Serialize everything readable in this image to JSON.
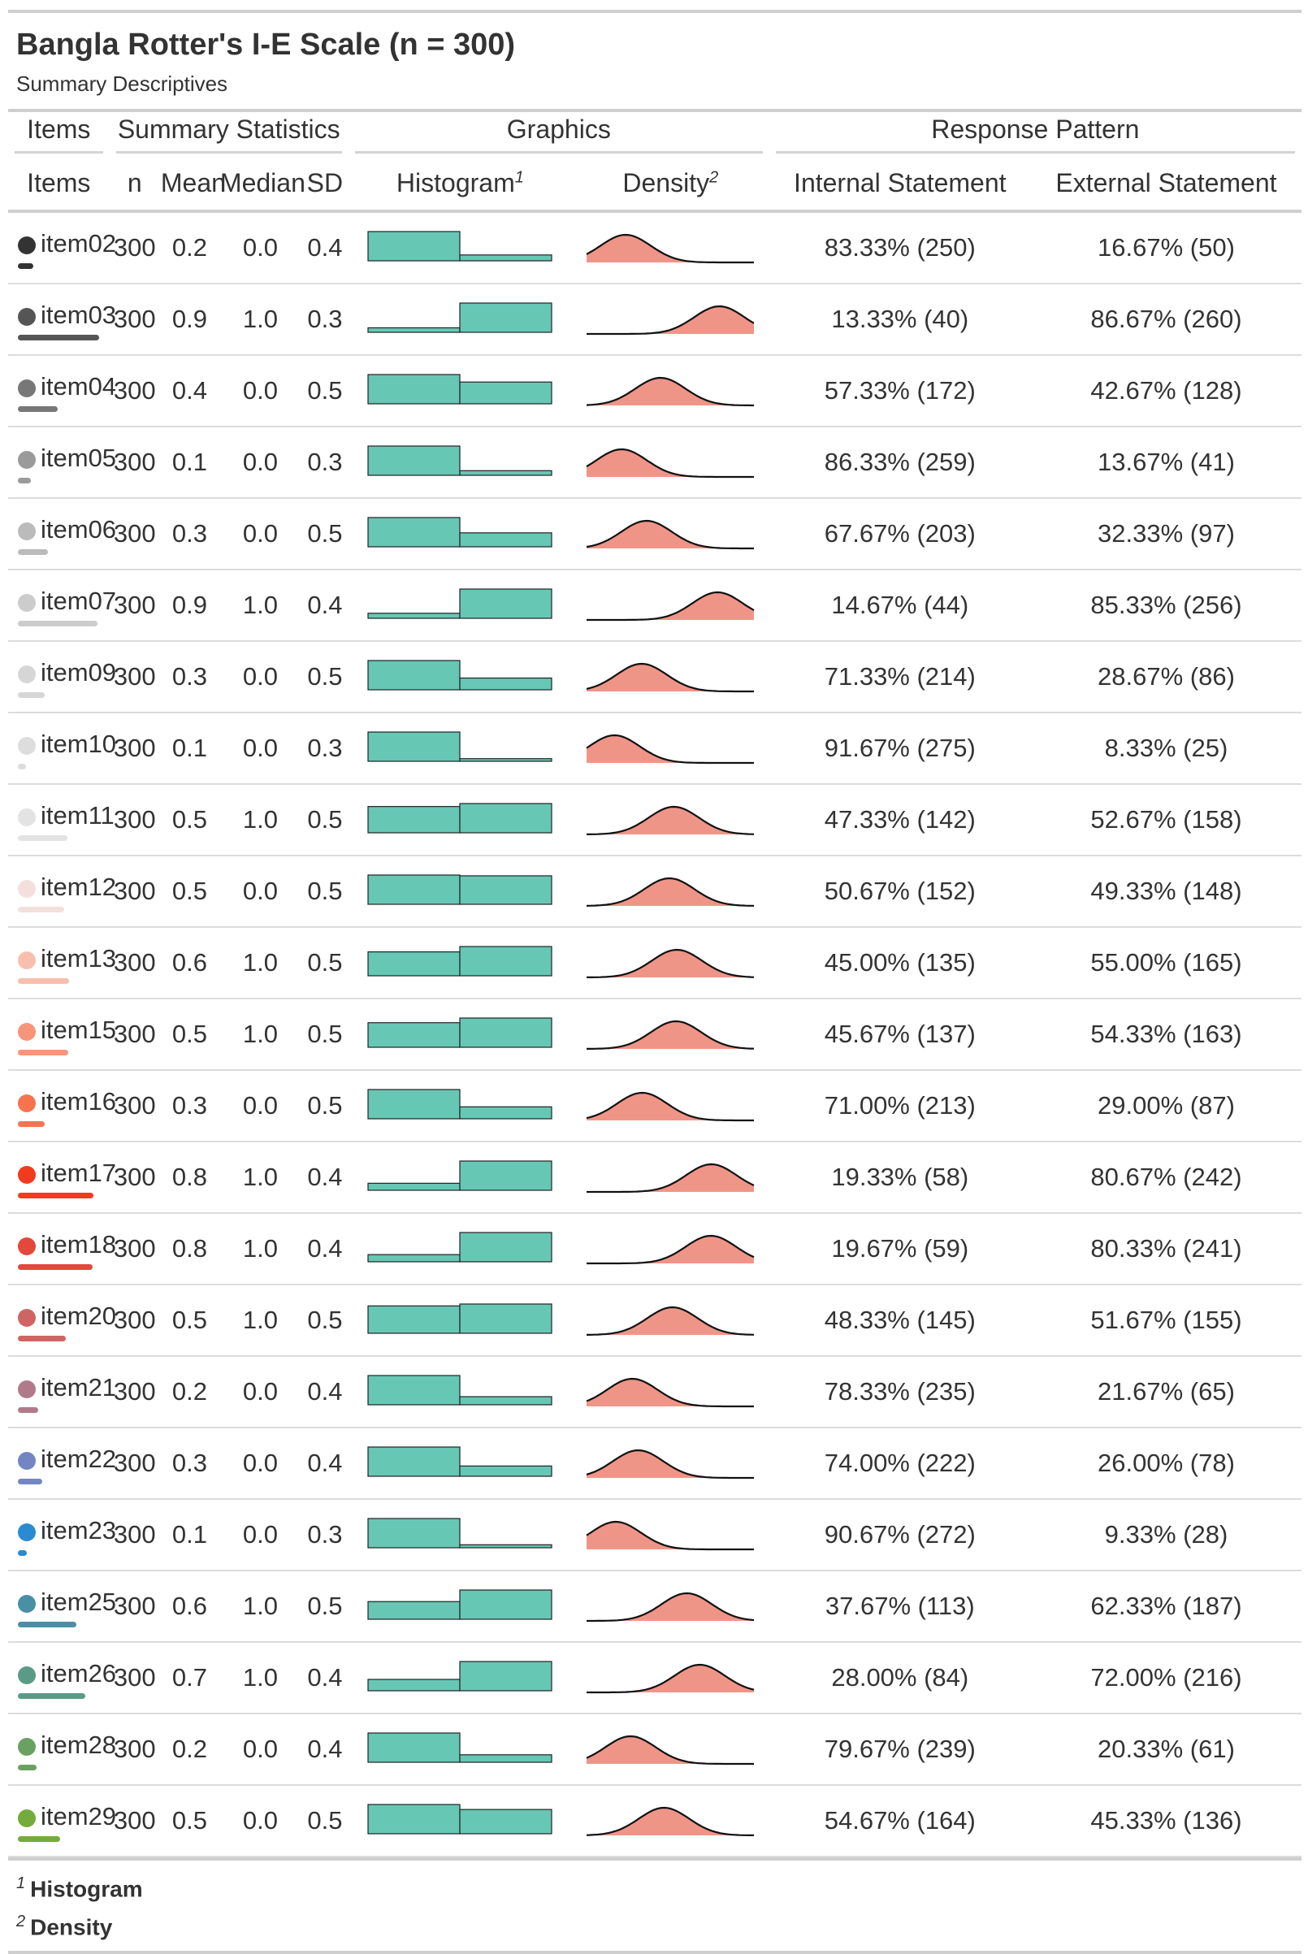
{
  "header": {
    "title": "Bangla Rotter's I-E Scale (n = 300)",
    "subtitle": "Summary Descriptives"
  },
  "spanners": {
    "items": "Items",
    "summary": "Summary Statistics",
    "graphics": "Graphics",
    "response": "Response Pattern"
  },
  "columns": {
    "items": "Items",
    "n": "n",
    "mean": "Mean",
    "median": "Median",
    "sd": "SD",
    "histogram": "Histogram",
    "histogram_note": "1",
    "density": "Density",
    "density_note": "2",
    "internal": "Internal Statement",
    "external": "External Statement"
  },
  "colors": {
    "histogram_fill": "#66c7b5",
    "density_fill": "#ef9588",
    "rule": "#cfcfcf"
  },
  "rows": [
    {
      "item": "item02",
      "color": "#333333",
      "n": "300",
      "mean": "0.2",
      "median": "0.0",
      "sd": "0.4",
      "internal": "83.33% (250)",
      "external": "16.67% (50)",
      "p_external": 0.1667
    },
    {
      "item": "item03",
      "color": "#555555",
      "n": "300",
      "mean": "0.9",
      "median": "1.0",
      "sd": "0.3",
      "internal": "13.33% (40)",
      "external": "86.67% (260)",
      "p_external": 0.8667
    },
    {
      "item": "item04",
      "color": "#777777",
      "n": "300",
      "mean": "0.4",
      "median": "0.0",
      "sd": "0.5",
      "internal": "57.33% (172)",
      "external": "42.67% (128)",
      "p_external": 0.4267
    },
    {
      "item": "item05",
      "color": "#9a9a9a",
      "n": "300",
      "mean": "0.1",
      "median": "0.0",
      "sd": "0.3",
      "internal": "86.33% (259)",
      "external": "13.67% (41)",
      "p_external": 0.1367
    },
    {
      "item": "item06",
      "color": "#bbbbbb",
      "n": "300",
      "mean": "0.3",
      "median": "0.0",
      "sd": "0.5",
      "internal": "67.67% (203)",
      "external": "32.33% (97)",
      "p_external": 0.3233
    },
    {
      "item": "item07",
      "color": "#cccccc",
      "n": "300",
      "mean": "0.9",
      "median": "1.0",
      "sd": "0.4",
      "internal": "14.67% (44)",
      "external": "85.33% (256)",
      "p_external": 0.8533
    },
    {
      "item": "item09",
      "color": "#d6d6d6",
      "n": "300",
      "mean": "0.3",
      "median": "0.0",
      "sd": "0.5",
      "internal": "71.33% (214)",
      "external": "28.67% (86)",
      "p_external": 0.2867
    },
    {
      "item": "item10",
      "color": "#dddddd",
      "n": "300",
      "mean": "0.1",
      "median": "0.0",
      "sd": "0.3",
      "internal": "91.67% (275)",
      "external": "8.33% (25)",
      "p_external": 0.0833
    },
    {
      "item": "item11",
      "color": "#e3e3e3",
      "n": "300",
      "mean": "0.5",
      "median": "1.0",
      "sd": "0.5",
      "internal": "47.33% (142)",
      "external": "52.67% (158)",
      "p_external": 0.5267
    },
    {
      "item": "item12",
      "color": "#f3e0dc",
      "n": "300",
      "mean": "0.5",
      "median": "0.0",
      "sd": "0.5",
      "internal": "50.67% (152)",
      "external": "49.33% (148)",
      "p_external": 0.4933
    },
    {
      "item": "item13",
      "color": "#f9bfae",
      "n": "300",
      "mean": "0.6",
      "median": "1.0",
      "sd": "0.5",
      "internal": "45.00% (135)",
      "external": "55.00% (165)",
      "p_external": 0.55
    },
    {
      "item": "item15",
      "color": "#f7957a",
      "n": "300",
      "mean": "0.5",
      "median": "1.0",
      "sd": "0.5",
      "internal": "45.67% (137)",
      "external": "54.33% (163)",
      "p_external": 0.5433
    },
    {
      "item": "item16",
      "color": "#f67350",
      "n": "300",
      "mean": "0.3",
      "median": "0.0",
      "sd": "0.5",
      "internal": "71.00% (213)",
      "external": "29.00% (87)",
      "p_external": 0.29
    },
    {
      "item": "item17",
      "color": "#f23a1e",
      "n": "300",
      "mean": "0.8",
      "median": "1.0",
      "sd": "0.4",
      "internal": "19.33% (58)",
      "external": "80.67% (242)",
      "p_external": 0.8067
    },
    {
      "item": "item18",
      "color": "#e4483a",
      "n": "300",
      "mean": "0.8",
      "median": "1.0",
      "sd": "0.4",
      "internal": "19.67% (59)",
      "external": "80.33% (241)",
      "p_external": 0.8033
    },
    {
      "item": "item20",
      "color": "#cf6563",
      "n": "300",
      "mean": "0.5",
      "median": "1.0",
      "sd": "0.5",
      "internal": "48.33% (145)",
      "external": "51.67% (155)",
      "p_external": 0.5167
    },
    {
      "item": "item21",
      "color": "#b07a8b",
      "n": "300",
      "mean": "0.2",
      "median": "0.0",
      "sd": "0.4",
      "internal": "78.33% (235)",
      "external": "21.67% (65)",
      "p_external": 0.2167
    },
    {
      "item": "item22",
      "color": "#7286c4",
      "n": "300",
      "mean": "0.3",
      "median": "0.0",
      "sd": "0.4",
      "internal": "74.00% (222)",
      "external": "26.00% (78)",
      "p_external": 0.26
    },
    {
      "item": "item23",
      "color": "#2a8bd3",
      "n": "300",
      "mean": "0.1",
      "median": "0.0",
      "sd": "0.3",
      "internal": "90.67% (272)",
      "external": "9.33% (28)",
      "p_external": 0.0933
    },
    {
      "item": "item25",
      "color": "#4a8fa6",
      "n": "300",
      "mean": "0.6",
      "median": "1.0",
      "sd": "0.5",
      "internal": "37.67% (113)",
      "external": "62.33% (187)",
      "p_external": 0.6233
    },
    {
      "item": "item26",
      "color": "#5b9a86",
      "n": "300",
      "mean": "0.7",
      "median": "1.0",
      "sd": "0.4",
      "internal": "28.00% (84)",
      "external": "72.00% (216)",
      "p_external": 0.72
    },
    {
      "item": "item28",
      "color": "#6ba063",
      "n": "300",
      "mean": "0.2",
      "median": "0.0",
      "sd": "0.4",
      "internal": "79.67% (239)",
      "external": "20.33% (61)",
      "p_external": 0.2033
    },
    {
      "item": "item29",
      "color": "#74ab3a",
      "n": "300",
      "mean": "0.5",
      "median": "0.0",
      "sd": "0.5",
      "internal": "54.67% (164)",
      "external": "45.33% (136)",
      "p_external": 0.4533
    }
  ],
  "footnotes": [
    {
      "mark": "1",
      "text": "Histogram"
    },
    {
      "mark": "2",
      "text": "Density"
    }
  ]
}
